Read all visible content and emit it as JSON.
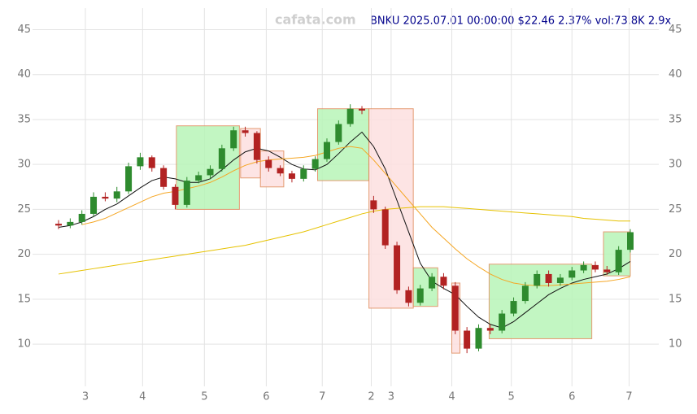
{
  "chart_data": {
    "type": "candlestick",
    "title": "BNKU 2025.07.01 00:00:00 $22.46 2.37% vol:73.8K 2.9x",
    "watermark": "cafata.com",
    "xlim": [
      0,
      49
    ],
    "ylim": [
      5.3,
      47.4
    ],
    "yticks": [
      10,
      15,
      20,
      25,
      30,
      35,
      40,
      45
    ],
    "xticks": [
      {
        "value": 2.3,
        "label": "3"
      },
      {
        "value": 7.2,
        "label": "4"
      },
      {
        "value": 12.5,
        "label": "5"
      },
      {
        "value": 17.8,
        "label": "6"
      },
      {
        "value": 22.6,
        "label": "7"
      },
      {
        "value": 26.8,
        "label": "2"
      },
      {
        "value": 28.5,
        "label": "3"
      },
      {
        "value": 33.7,
        "label": "4"
      },
      {
        "value": 38.8,
        "label": "5"
      },
      {
        "value": 44,
        "label": "6"
      },
      {
        "value": 48.9,
        "label": "7"
      }
    ],
    "grid": true,
    "up_color": "#2e8b2e",
    "down_color": "#b22222",
    "open": [
      23.4,
      23.2,
      23.6,
      24.5,
      26.4,
      26.2,
      27.0,
      29.8,
      30.8,
      29.6,
      27.5,
      25.5,
      28.2,
      28.8,
      29.5,
      31.8,
      33.8,
      33.5,
      30.5,
      29.6,
      29.0,
      28.4,
      29.5,
      30.6,
      32.5,
      34.5,
      36.2,
      26.0,
      25.0,
      21.0,
      16.0,
      14.6,
      16.2,
      17.5,
      16.5,
      11.5,
      9.5,
      11.8,
      11.5,
      13.4,
      14.8,
      16.5,
      17.8,
      16.8,
      17.4,
      18.2,
      18.8,
      18.3,
      18.0,
      20.5
    ],
    "high": [
      23.8,
      24.0,
      24.9,
      26.9,
      26.9,
      27.5,
      30.2,
      31.3,
      31.0,
      29.9,
      27.8,
      28.6,
      29.2,
      29.9,
      32.2,
      34.2,
      34.2,
      33.7,
      30.9,
      29.9,
      29.3,
      29.9,
      30.9,
      32.9,
      34.9,
      36.7,
      36.5,
      26.5,
      25.3,
      21.4,
      16.4,
      16.6,
      17.9,
      17.9,
      16.9,
      11.9,
      12.2,
      12.2,
      13.8,
      15.2,
      16.9,
      18.2,
      18.2,
      17.8,
      18.6,
      19.2,
      19.2,
      18.7,
      20.9,
      22.8
    ],
    "low": [
      22.8,
      22.9,
      23.3,
      24.2,
      25.9,
      25.8,
      26.7,
      29.4,
      29.2,
      27.2,
      25.0,
      25.2,
      27.9,
      28.4,
      29.2,
      31.5,
      33.1,
      30.1,
      29.2,
      28.7,
      28.0,
      28.1,
      29.2,
      30.3,
      32.2,
      34.2,
      35.6,
      24.6,
      20.6,
      15.6,
      14.2,
      14.3,
      15.9,
      16.1,
      11.1,
      9.0,
      9.2,
      11.1,
      11.2,
      13.1,
      14.5,
      16.2,
      16.4,
      16.5,
      17.1,
      17.9,
      18.0,
      17.7,
      17.7,
      20.2
    ],
    "close": [
      23.2,
      23.6,
      24.5,
      26.4,
      26.2,
      27.0,
      29.8,
      30.8,
      29.6,
      27.5,
      25.5,
      28.2,
      28.8,
      29.5,
      31.8,
      33.8,
      33.5,
      30.5,
      29.6,
      29.0,
      28.4,
      29.5,
      30.6,
      32.5,
      34.5,
      36.2,
      36.0,
      25.0,
      21.0,
      16.0,
      14.6,
      16.2,
      17.5,
      16.5,
      11.5,
      9.5,
      11.8,
      11.5,
      13.4,
      14.8,
      16.5,
      17.8,
      16.8,
      17.4,
      18.2,
      18.8,
      18.3,
      18.0,
      20.5,
      22.46
    ],
    "series": [
      {
        "color": "#111111",
        "values": [
          23.0,
          23.2,
          23.6,
          24.2,
          25.0,
          25.6,
          26.5,
          27.4,
          28.2,
          28.6,
          28.4,
          28.0,
          28.0,
          28.4,
          29.4,
          30.5,
          31.4,
          31.8,
          31.5,
          30.8,
          30.0,
          29.5,
          29.4,
          30.0,
          31.2,
          32.5,
          33.6,
          32.0,
          29.5,
          26.0,
          22.5,
          19.0,
          17.0,
          16.2,
          15.5,
          14.2,
          13.0,
          12.2,
          11.8,
          12.5,
          13.5,
          14.5,
          15.5,
          16.2,
          16.8,
          17.2,
          17.5,
          17.8,
          18.4,
          19.2
        ]
      },
      {
        "color": "#f5a623",
        "values": [
          null,
          null,
          23.3,
          23.6,
          24.0,
          24.6,
          25.2,
          25.8,
          26.4,
          26.8,
          27.0,
          27.3,
          27.6,
          28.0,
          28.6,
          29.3,
          29.9,
          30.3,
          30.5,
          30.6,
          30.7,
          30.8,
          31.0,
          31.4,
          31.8,
          32.0,
          31.8,
          30.5,
          29.0,
          27.5,
          26.0,
          24.5,
          23.0,
          21.8,
          20.6,
          19.5,
          18.6,
          17.8,
          17.2,
          16.8,
          16.6,
          16.5,
          16.5,
          16.6,
          16.7,
          16.8,
          16.9,
          17.0,
          17.2,
          17.5
        ]
      },
      {
        "color": "#e6c200",
        "values": [
          17.8,
          18.0,
          18.2,
          18.4,
          18.6,
          18.8,
          19.0,
          19.2,
          19.4,
          19.6,
          19.8,
          20.0,
          20.2,
          20.4,
          20.6,
          20.8,
          21.0,
          21.3,
          21.6,
          21.9,
          22.2,
          22.5,
          22.9,
          23.3,
          23.7,
          24.1,
          24.5,
          24.8,
          25.0,
          25.1,
          25.2,
          25.3,
          25.3,
          25.3,
          25.2,
          25.1,
          25.0,
          24.9,
          24.8,
          24.7,
          24.6,
          24.5,
          24.4,
          24.3,
          24.2,
          24.0,
          23.9,
          23.8,
          23.7,
          23.7
        ]
      }
    ],
    "zones": [
      {
        "start": 10.1,
        "end": 15.5,
        "low": 25,
        "high": 34.3,
        "color": "#b8f5b8"
      },
      {
        "start": 15.6,
        "end": 17.3,
        "low": 28.5,
        "high": 34,
        "color": "#fde0e0"
      },
      {
        "start": 17.3,
        "end": 19.3,
        "low": 27.5,
        "high": 31.5,
        "color": "#fde0e0"
      },
      {
        "start": 22.2,
        "end": 26.6,
        "low": 28.2,
        "high": 36.2,
        "color": "#b8f5b8"
      },
      {
        "start": 26.6,
        "end": 30.4,
        "low": 14,
        "high": 36.2,
        "color": "#fde0e0"
      },
      {
        "start": 30.4,
        "end": 32.5,
        "low": 14.2,
        "high": 18.5,
        "color": "#b8f5b8"
      },
      {
        "start": 33.7,
        "end": 34.4,
        "low": 9,
        "high": 16.8,
        "color": "#fde0e0"
      },
      {
        "start": 36.9,
        "end": 45.7,
        "low": 10.6,
        "high": 18.9,
        "color": "#b8f5b8"
      },
      {
        "start": 46.7,
        "end": 49,
        "low": 17.6,
        "high": 22.5,
        "color": "#b8f5b8"
      }
    ]
  }
}
